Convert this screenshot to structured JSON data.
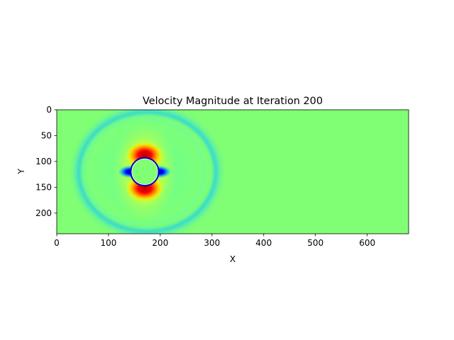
{
  "chart_data": {
    "type": "heatmap",
    "title": "Velocity Magnitude at Iteration 200",
    "xlabel": "X",
    "ylabel": "Y",
    "xlim": [
      0,
      680
    ],
    "ylim": [
      240,
      0
    ],
    "x_ticks": [
      "0",
      "100",
      "200",
      "300",
      "400",
      "500",
      "600"
    ],
    "y_ticks": [
      "0",
      "50",
      "100",
      "150",
      "200"
    ],
    "colormap": "jet",
    "background_value_color": "#80ff74",
    "obstacle": {
      "shape": "circle",
      "center": [
        170,
        120
      ],
      "radius": 25
    },
    "features": [
      {
        "name": "high-velocity lobe above obstacle",
        "center": [
          170,
          88
        ],
        "color": "#ff0000"
      },
      {
        "name": "high-velocity lobe below obstacle",
        "center": [
          170,
          152
        ],
        "color": "#ff0000"
      },
      {
        "name": "low-velocity region left of obstacle",
        "center": [
          142,
          120
        ],
        "color": "#0000ff"
      },
      {
        "name": "low-velocity region right of obstacle",
        "center": [
          198,
          120
        ],
        "color": "#0000ff"
      },
      {
        "name": "pressure wavefront",
        "center": [
          175,
          120
        ],
        "radius_x": 135,
        "radius_y": 118,
        "color": "#00bfff"
      }
    ]
  }
}
